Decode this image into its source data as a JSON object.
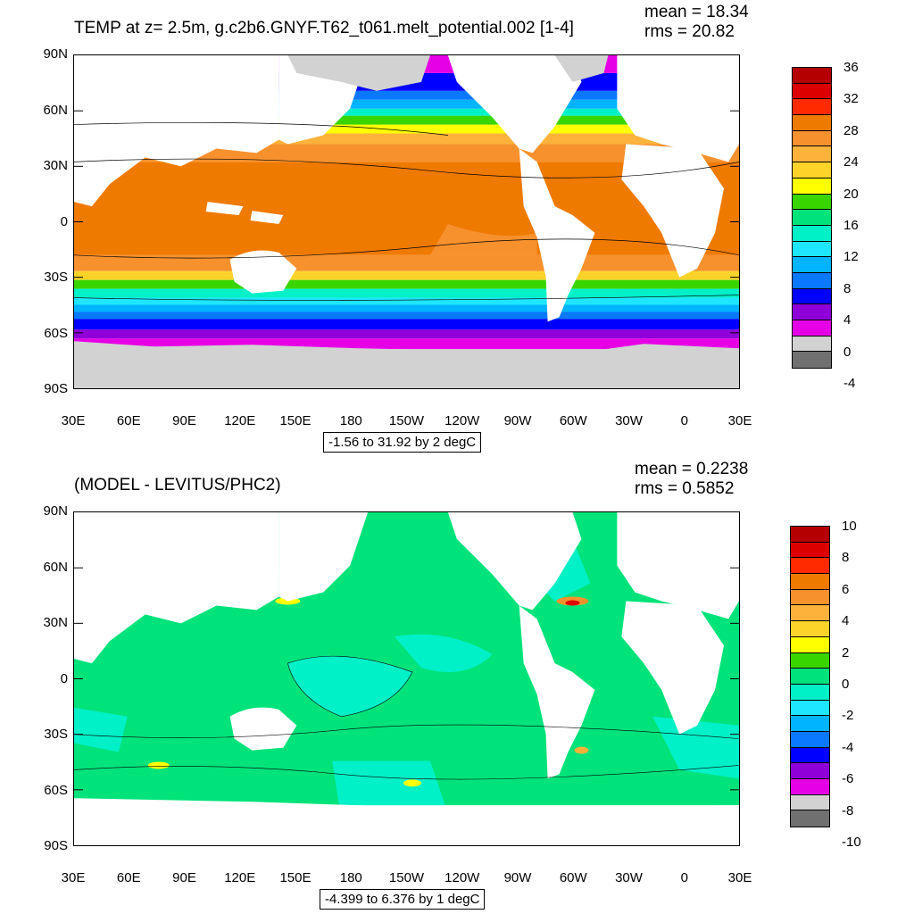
{
  "top": {
    "title": "TEMP at z=   2.5m, g.c2b6.GNYF.T62_t061.melt_potential.002 [1-4]",
    "mean": "mean = 18.34",
    "rms": "rms = 20.82",
    "range": "-1.56 to 31.92 by 2 degC",
    "lat_labels": [
      "90N",
      "60N",
      "30N",
      "0",
      "30S",
      "60S",
      "90S"
    ],
    "lon_labels": [
      "30E",
      "60E",
      "90E",
      "120E",
      "150E",
      "180",
      "150W",
      "120W",
      "90W",
      "60W",
      "30W",
      "0",
      "30E"
    ],
    "colorbar_labels": [
      "36",
      "32",
      "28",
      "24",
      "20",
      "16",
      "12",
      "8",
      "4",
      "0",
      "-4"
    ],
    "colors": [
      "#b40000",
      "#dc0000",
      "#ff2a00",
      "#ef7a00",
      "#f7912e",
      "#fdb23c",
      "#fdd32a",
      "#ffff00",
      "#39d500",
      "#00e37a",
      "#00f0c8",
      "#1ee6ff",
      "#00b4ff",
      "#0a78ff",
      "#0000ff",
      "#8f00d9",
      "#e600e6",
      "#d2d2d2",
      "#707070"
    ]
  },
  "bottom": {
    "title": "(MODEL - LEVITUS/PHC2)",
    "mean": "mean = 0.2238",
    "rms": "rms = 0.5852",
    "range": "-4.399 to 6.376 by 1 degC",
    "lat_labels": [
      "90N",
      "60N",
      "30N",
      "0",
      "30S",
      "60S",
      "90S"
    ],
    "lon_labels": [
      "30E",
      "60E",
      "90E",
      "120E",
      "150E",
      "180",
      "150W",
      "120W",
      "90W",
      "60W",
      "30W",
      "0",
      "30E"
    ],
    "colorbar_labels": [
      "10",
      "8",
      "6",
      "4",
      "2",
      "0",
      "-2",
      "-4",
      "-6",
      "-8",
      "-10"
    ],
    "colors": [
      "#b40000",
      "#dc0000",
      "#ff2a00",
      "#ef7a00",
      "#f7912e",
      "#fdb23c",
      "#fdd32a",
      "#ffff00",
      "#39d500",
      "#00e37a",
      "#00f0c8",
      "#1ee6ff",
      "#00b4ff",
      "#0a78ff",
      "#0000ff",
      "#8f00d9",
      "#e600e6",
      "#d2d2d2",
      "#707070"
    ]
  }
}
